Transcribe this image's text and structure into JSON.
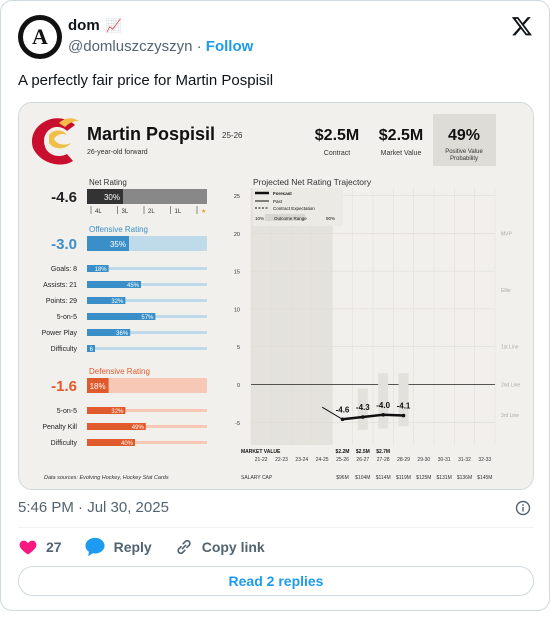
{
  "tweet": {
    "display_name": "dom",
    "name_emoji": "📈",
    "handle": "@domluszczyszyn",
    "separator": "·",
    "follow_label": "Follow",
    "text": "A perfectly fair price for Martin Pospisil",
    "timestamp": "5:46 PM · Jul 30, 2025",
    "like_count": "27",
    "reply_label": "Reply",
    "copy_link_label": "Copy link",
    "read_replies_label": "Read 2 replies",
    "colors": {
      "like": "#f91880",
      "link": "#1d9bf0",
      "secondary": "#536471"
    }
  },
  "card": {
    "player_name": "Martin Pospisil",
    "season": "25-26",
    "subtitle": "26-year-old forward",
    "contract_value": "$2.5M",
    "contract_label": "Contract",
    "market_value": "$2.5M",
    "market_label": "Market Value",
    "probability": "49%",
    "probability_label_1": "Positive Value",
    "probability_label_2": "Probability",
    "net_rating": {
      "title": "Net Rating",
      "value": "-4.6",
      "percentile": 30,
      "percentile_label": "30%",
      "scale_labels": [
        "4L",
        "3L",
        "2L",
        "1L",
        "★"
      ]
    },
    "offensive": {
      "title": "Offensive Rating",
      "value": "-3.0",
      "percentile": 35,
      "percentile_label": "35%",
      "rows": [
        {
          "label": "Goals: 8",
          "pct": 18,
          "pct_label": "18%"
        },
        {
          "label": "Assists: 21",
          "pct": 45,
          "pct_label": "45%"
        },
        {
          "label": "Points: 29",
          "pct": 32,
          "pct_label": "32%"
        },
        {
          "label": "5-on-5",
          "pct": 57,
          "pct_label": "57%"
        },
        {
          "label": "Power Play",
          "pct": 36,
          "pct_label": "36%"
        },
        {
          "label": "Difficulty",
          "pct": 6,
          "pct_label": "6"
        }
      ]
    },
    "defensive": {
      "title": "Defensive Rating",
      "value": "-1.6",
      "percentile": 18,
      "percentile_label": "18%",
      "rows": [
        {
          "label": "5-on-5",
          "pct": 32,
          "pct_label": "32%"
        },
        {
          "label": "Penalty Kill",
          "pct": 49,
          "pct_label": "49%"
        },
        {
          "label": "Difficulty",
          "pct": 40,
          "pct_label": "40%"
        }
      ]
    },
    "sources": "Data sources: Evolving Hockey, Hockey Stat Cards"
  },
  "chart_data": {
    "type": "line",
    "title": "Projected Net Rating Trajectory",
    "ylim": [
      -8,
      26
    ],
    "y_ticks": [
      25,
      20,
      15,
      10,
      5,
      0,
      -5
    ],
    "tier_labels": [
      {
        "label": "MVP",
        "y": 20
      },
      {
        "label": "Elite",
        "y": 12.5
      },
      {
        "label": "1st Line",
        "y": 5
      },
      {
        "label": "2nd Line",
        "y": 0
      },
      {
        "label": "3rd Line",
        "y": -4
      }
    ],
    "categories": [
      "21-22",
      "22-23",
      "23-24",
      "24-25",
      "25-26",
      "26-27",
      "27-28",
      "28-29",
      "29-30",
      "30-31",
      "31-32",
      "32-33"
    ],
    "legend": [
      "Forecast",
      "Past",
      "Contract Expectation",
      "10%",
      "Outcome Range",
      "90%"
    ],
    "series": [
      {
        "name": "Past",
        "points": [
          {
            "x": "24-25",
            "y": -3
          },
          {
            "x": "25-26",
            "y": -4.6
          }
        ]
      },
      {
        "name": "Forecast",
        "points": [
          {
            "x": "25-26",
            "y": -4.6
          },
          {
            "x": "26-27",
            "y": -4.3
          },
          {
            "x": "27-28",
            "y": -4.0
          },
          {
            "x": "28-29",
            "y": -4.1
          }
        ]
      }
    ],
    "value_labels": [
      "-4.6",
      "-4.3",
      "-4.0",
      "-4.1"
    ],
    "ranges": [
      {
        "x": "26-27",
        "low": -6,
        "high": -0.5
      },
      {
        "x": "27-28",
        "low": -5.8,
        "high": 1.5
      },
      {
        "x": "28-29",
        "low": -5.5,
        "high": 1.5
      }
    ],
    "market_value_label": "MARKET VALUE",
    "market_values": [
      "",
      "",
      "",
      "",
      "$2.2M",
      "$2.5M",
      "$2.7M",
      "",
      "",
      "",
      "",
      ""
    ],
    "salary_cap_label": "SALARY CAP",
    "salary_caps": [
      "",
      "",
      "",
      "",
      "$96M",
      "$104M",
      "$114M",
      "$119M",
      "$125M",
      "$131M",
      "$136M",
      "$145M"
    ]
  }
}
